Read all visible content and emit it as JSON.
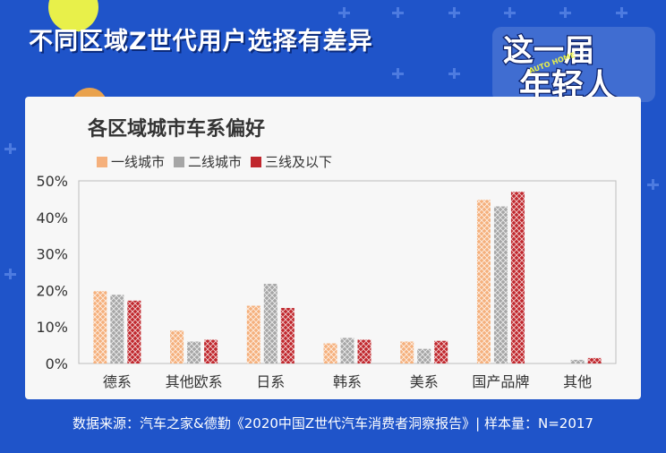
{
  "headline": "不同区域Z世代用户选择有差异",
  "logo": {
    "line1": "这一届",
    "line2": "年轻人",
    "small": "AUTO HOME"
  },
  "footer": "数据来源：汽车之家&德勤《2020中国Z世代汽车消费者洞察报告》| 样本量：N=2017",
  "colors": {
    "background": "#1f54c9",
    "tier1": "#f5b07c",
    "tier2": "#a6a6a6",
    "tier3": "#c0272d"
  },
  "chart_data": {
    "type": "bar",
    "title": "各区域城市车系偏好",
    "categories": [
      "德系",
      "其他欧系",
      "日系",
      "韩系",
      "美系",
      "国产品牌",
      "其他"
    ],
    "series": [
      {
        "name": "一线城市",
        "values": [
          19.8,
          9.0,
          15.8,
          5.5,
          6.0,
          44.8,
          0.0
        ]
      },
      {
        "name": "二线城市",
        "values": [
          18.8,
          6.0,
          21.8,
          7.0,
          4.0,
          43.0,
          1.0
        ]
      },
      {
        "name": "三线及以下",
        "values": [
          17.2,
          6.5,
          15.2,
          6.5,
          6.2,
          47.0,
          1.5
        ]
      }
    ],
    "y_ticks": [
      "0%",
      "10%",
      "20%",
      "30%",
      "40%",
      "50%"
    ],
    "ylim": [
      0,
      50
    ],
    "legend_position": "top-left",
    "grid": false
  }
}
